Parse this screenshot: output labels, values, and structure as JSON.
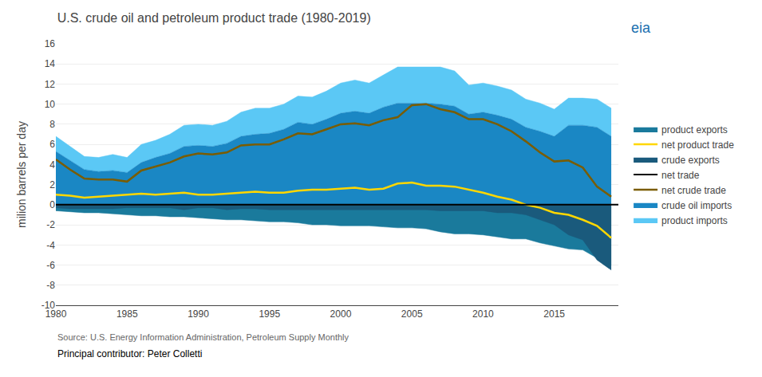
{
  "chart_data": {
    "type": "area",
    "title": "U.S. crude oil and petroleum product trade (1980-2019)",
    "ylabel": "milion barrels per day",
    "x": [
      1980,
      1981,
      1982,
      1983,
      1984,
      1985,
      1986,
      1987,
      1988,
      1989,
      1990,
      1991,
      1992,
      1993,
      1994,
      1995,
      1996,
      1997,
      1998,
      1999,
      2000,
      2001,
      2002,
      2003,
      2004,
      2005,
      2006,
      2007,
      2008,
      2009,
      2010,
      2011,
      2012,
      2013,
      2014,
      2015,
      2016,
      2017,
      2018,
      2019
    ],
    "xlim": [
      1980,
      2019.5
    ],
    "xticks": [
      1980,
      1985,
      1990,
      1995,
      2000,
      2005,
      2010,
      2015
    ],
    "ylim": [
      -10,
      16
    ],
    "yticks": [
      -10,
      -8,
      -6,
      -4,
      -2,
      0,
      2,
      4,
      6,
      8,
      10,
      12,
      14,
      16
    ],
    "grid": "y",
    "legend": "right",
    "series": [
      {
        "name": "product imports",
        "type": "stackedarea",
        "color": "#5bc8f5",
        "values": [
          1.5,
          1.4,
          1.3,
          1.4,
          1.6,
          1.5,
          1.8,
          1.7,
          1.9,
          2.1,
          2.1,
          2.1,
          2.2,
          2.4,
          2.6,
          2.5,
          2.5,
          2.6,
          2.7,
          2.8,
          3.0,
          3.1,
          3.0,
          3.2,
          3.6,
          3.6,
          3.6,
          3.7,
          3.5,
          2.9,
          2.9,
          2.9,
          2.9,
          2.8,
          2.8,
          2.7,
          2.7,
          2.7,
          2.8,
          2.8
        ]
      },
      {
        "name": "crude oil imports",
        "type": "stackedarea",
        "color": "#1a87c4",
        "values": [
          5.3,
          4.4,
          3.5,
          3.3,
          3.4,
          3.2,
          4.2,
          4.7,
          5.1,
          5.8,
          5.9,
          5.8,
          6.1,
          6.8,
          7.0,
          7.1,
          7.5,
          8.2,
          8.0,
          8.5,
          9.1,
          9.3,
          9.1,
          9.7,
          10.1,
          10.1,
          10.1,
          10.0,
          9.8,
          9.0,
          9.2,
          8.9,
          8.5,
          7.7,
          7.3,
          6.8,
          7.9,
          7.9,
          7.7,
          6.8
        ]
      },
      {
        "name": "net crude trade",
        "type": "line",
        "color": "#7a5c00",
        "values": [
          4.5,
          3.5,
          2.6,
          2.5,
          2.5,
          2.3,
          3.4,
          3.8,
          4.2,
          4.8,
          5.1,
          5.0,
          5.2,
          5.9,
          6.0,
          6.0,
          6.5,
          7.1,
          7.0,
          7.5,
          8.0,
          8.1,
          7.9,
          8.4,
          8.7,
          9.9,
          10.0,
          9.5,
          9.2,
          8.5,
          8.5,
          8.0,
          7.3,
          6.3,
          5.2,
          4.3,
          4.4,
          3.7,
          1.8,
          0.8
        ]
      },
      {
        "name": "net trade",
        "type": "hline",
        "color": "#000000",
        "value": 0
      },
      {
        "name": "crude exports",
        "type": "area",
        "color": "#1a5a7c",
        "values": [
          -0.3,
          -0.4,
          -0.4,
          -0.4,
          -0.4,
          -0.3,
          -0.3,
          -0.3,
          -0.3,
          -0.5,
          -0.3,
          -0.3,
          -0.5,
          -0.4,
          -0.4,
          -0.5,
          -0.5,
          -0.5,
          -0.5,
          -0.5,
          -0.5,
          -0.5,
          -0.5,
          -0.5,
          -0.5,
          -0.5,
          -0.5,
          -0.6,
          -0.6,
          -0.6,
          -0.6,
          -0.8,
          -0.8,
          -1.0,
          -1.5,
          -2.0,
          -3.0,
          -3.5,
          -5.5,
          -6.5
        ]
      },
      {
        "name": "net product trade",
        "type": "line",
        "color": "#FFD700",
        "values": [
          1.0,
          0.9,
          0.7,
          0.8,
          0.9,
          1.0,
          1.1,
          1.0,
          1.1,
          1.2,
          1.0,
          1.0,
          1.1,
          1.2,
          1.3,
          1.2,
          1.2,
          1.4,
          1.5,
          1.5,
          1.6,
          1.7,
          1.5,
          1.6,
          2.1,
          2.2,
          1.9,
          1.9,
          1.8,
          1.5,
          1.2,
          0.8,
          0.5,
          0.0,
          -0.3,
          -0.8,
          -1.0,
          -1.5,
          -2.1,
          -3.3
        ]
      },
      {
        "name": "product exports",
        "type": "area",
        "color": "#1a7a9c",
        "values": [
          -0.6,
          -0.7,
          -0.8,
          -0.8,
          -0.9,
          -1.0,
          -1.1,
          -1.1,
          -1.2,
          -1.2,
          -1.3,
          -1.4,
          -1.5,
          -1.5,
          -1.6,
          -1.7,
          -1.7,
          -1.8,
          -2.0,
          -2.0,
          -2.1,
          -2.1,
          -2.1,
          -2.2,
          -2.3,
          -2.3,
          -2.4,
          -2.7,
          -2.9,
          -2.9,
          -3.0,
          -3.2,
          -3.4,
          -3.4,
          -3.8,
          -4.1,
          -4.4,
          -4.5,
          -5.3,
          -6.0
        ]
      }
    ],
    "annotations": [
      "Source: U.S. Energy Information Administration, Petroleum Supply Monthly",
      "Principal contributor: Peter Colletti",
      "eia"
    ]
  }
}
